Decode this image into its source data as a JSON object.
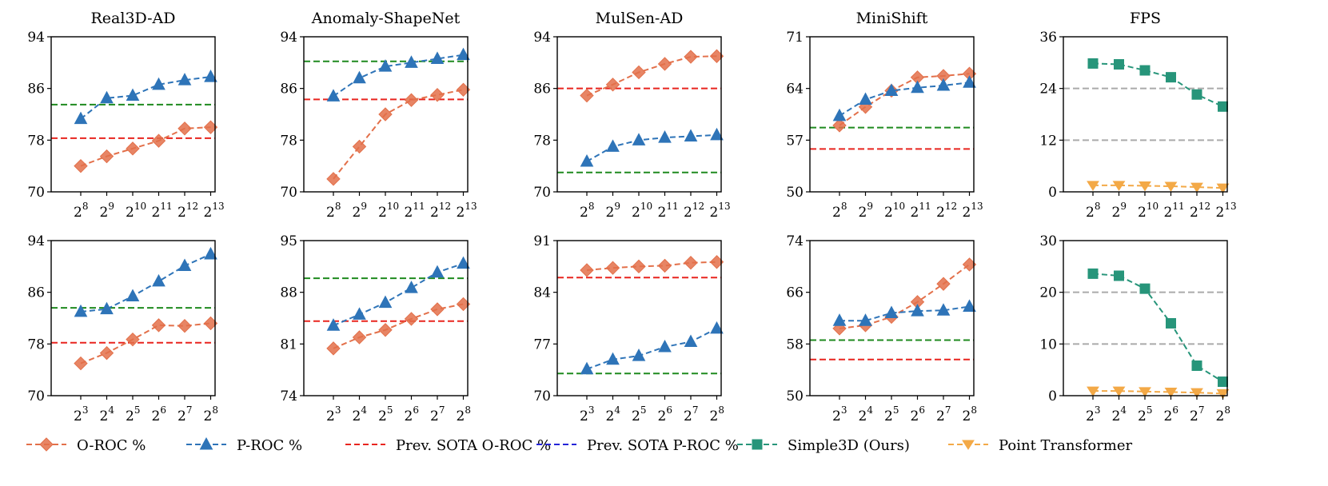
{
  "colors": {
    "oroc": "#e3704a",
    "proc": "#2e74b8",
    "sota_oroc": "#e8251f",
    "sota_proc": "#2424d8",
    "simple3d": "#27957a",
    "pt": "#f3a947",
    "green_ref": "#1f8a1f",
    "gray_ref": "#aaaaaa"
  },
  "legend": [
    {
      "key": "oroc",
      "label": "O-ROC %",
      "marker": "diamond"
    },
    {
      "key": "proc",
      "label": "P-ROC %",
      "marker": "triangle"
    },
    {
      "key": "sota_oroc",
      "label": "Prev. SOTA O-ROC %",
      "marker": "none"
    },
    {
      "key": "sota_proc",
      "label": "Prev. SOTA P-ROC %",
      "marker": "none"
    },
    {
      "key": "simple3d",
      "label": "Simple3D (Ours)",
      "marker": "square"
    },
    {
      "key": "pt",
      "label": "Point Transformer",
      "marker": "triangle-down"
    }
  ],
  "chart_data": [
    {
      "id": "r1c1",
      "type": "line",
      "title": "Real3D-AD",
      "ylim": [
        70,
        94
      ],
      "yticks": [
        "70",
        "78",
        "86",
        "94"
      ],
      "x_base": "2",
      "x_exponents": [
        "8",
        "9",
        "10",
        "11",
        "12",
        "13"
      ],
      "series": [
        {
          "key": "oroc",
          "values": [
            74.0,
            75.5,
            76.7,
            77.9,
            79.8,
            80.0
          ]
        },
        {
          "key": "proc",
          "values": [
            81.3,
            84.5,
            84.9,
            86.6,
            87.3,
            87.8
          ]
        }
      ],
      "hlines": [
        {
          "key": "sota_oroc",
          "value": 78.3
        },
        {
          "key": "green_ref",
          "value": 83.5
        }
      ]
    },
    {
      "id": "r1c2",
      "type": "line",
      "title": "Anomaly-ShapeNet",
      "ylim": [
        70,
        94
      ],
      "yticks": [
        "70",
        "78",
        "86",
        "94"
      ],
      "x_base": "2",
      "x_exponents": [
        "8",
        "9",
        "10",
        "11",
        "12",
        "13"
      ],
      "series": [
        {
          "key": "oroc",
          "values": [
            72.0,
            77.0,
            82.0,
            84.2,
            85.0,
            85.8
          ]
        },
        {
          "key": "proc",
          "values": [
            84.8,
            87.6,
            89.4,
            90.0,
            90.6,
            91.2
          ]
        }
      ],
      "hlines": [
        {
          "key": "sota_oroc",
          "value": 84.3
        },
        {
          "key": "green_ref",
          "value": 90.2
        }
      ]
    },
    {
      "id": "r1c3",
      "type": "line",
      "title": "MulSen-AD",
      "ylim": [
        70,
        94
      ],
      "yticks": [
        "70",
        "78",
        "86",
        "94"
      ],
      "x_base": "2",
      "x_exponents": [
        "8",
        "9",
        "10",
        "11",
        "12",
        "13"
      ],
      "series": [
        {
          "key": "oroc",
          "values": [
            84.9,
            86.6,
            88.5,
            89.8,
            90.9,
            91.0
          ]
        },
        {
          "key": "proc",
          "values": [
            74.7,
            77.0,
            78.0,
            78.4,
            78.6,
            78.8
          ]
        }
      ],
      "hlines": [
        {
          "key": "sota_oroc",
          "value": 86.0
        },
        {
          "key": "green_ref",
          "value": 73.0
        }
      ]
    },
    {
      "id": "r1c4",
      "type": "line",
      "title": "MiniShift",
      "ylim": [
        50,
        71
      ],
      "yticks": [
        "50",
        "57",
        "64",
        "71"
      ],
      "x_base": "2",
      "x_exponents": [
        "8",
        "9",
        "10",
        "11",
        "12",
        "13"
      ],
      "series": [
        {
          "key": "oroc",
          "values": [
            59.0,
            61.5,
            63.7,
            65.5,
            65.7,
            66.0
          ]
        },
        {
          "key": "proc",
          "values": [
            60.3,
            62.5,
            63.7,
            64.1,
            64.4,
            64.8
          ]
        }
      ],
      "hlines": [
        {
          "key": "sota_oroc",
          "value": 55.8
        },
        {
          "key": "green_ref",
          "value": 58.7
        }
      ]
    },
    {
      "id": "r1c5",
      "type": "line",
      "title": "FPS",
      "ylim": [
        0,
        36
      ],
      "yticks": [
        "0",
        "12",
        "24",
        "36"
      ],
      "x_base": "2",
      "x_exponents": [
        "8",
        "9",
        "10",
        "11",
        "12",
        "13"
      ],
      "series": [
        {
          "key": "simple3d",
          "values": [
            29.8,
            29.6,
            28.2,
            26.6,
            22.6,
            19.8
          ]
        },
        {
          "key": "pt",
          "values": [
            1.5,
            1.5,
            1.4,
            1.3,
            1.1,
            0.9
          ]
        }
      ],
      "hlines": [
        {
          "key": "gray_ref",
          "value": 24.0
        },
        {
          "key": "gray_ref",
          "value": 12.0
        }
      ]
    },
    {
      "id": "r2c1",
      "type": "line",
      "title": "",
      "ylim": [
        70,
        94
      ],
      "yticks": [
        "70",
        "78",
        "86",
        "94"
      ],
      "x_base": "2",
      "x_exponents": [
        "3",
        "4",
        "5",
        "6",
        "7",
        "8"
      ],
      "series": [
        {
          "key": "oroc",
          "values": [
            75.0,
            76.6,
            78.7,
            80.9,
            80.8,
            81.2
          ]
        },
        {
          "key": "proc",
          "values": [
            83.0,
            83.4,
            85.4,
            87.7,
            90.1,
            91.9
          ]
        }
      ],
      "hlines": [
        {
          "key": "sota_oroc",
          "value": 78.2
        },
        {
          "key": "green_ref",
          "value": 83.6
        }
      ]
    },
    {
      "id": "r2c2",
      "type": "line",
      "title": "",
      "ylim": [
        74,
        95
      ],
      "yticks": [
        "74",
        "81",
        "88",
        "95"
      ],
      "x_base": "2",
      "x_exponents": [
        "3",
        "4",
        "5",
        "6",
        "7",
        "8"
      ],
      "series": [
        {
          "key": "oroc",
          "values": [
            80.4,
            81.9,
            82.9,
            84.4,
            85.7,
            86.4
          ]
        },
        {
          "key": "proc",
          "values": [
            83.5,
            85.0,
            86.6,
            88.6,
            90.7,
            91.9
          ]
        }
      ],
      "hlines": [
        {
          "key": "sota_oroc",
          "value": 84.1
        },
        {
          "key": "green_ref",
          "value": 89.9
        }
      ]
    },
    {
      "id": "r2c3",
      "type": "line",
      "title": "",
      "ylim": [
        70,
        91
      ],
      "yticks": [
        "70",
        "77",
        "84",
        "91"
      ],
      "x_base": "2",
      "x_exponents": [
        "3",
        "4",
        "5",
        "6",
        "7",
        "8"
      ],
      "series": [
        {
          "key": "oroc",
          "values": [
            87.0,
            87.3,
            87.5,
            87.6,
            88.0,
            88.1
          ]
        },
        {
          "key": "proc",
          "values": [
            73.6,
            74.9,
            75.4,
            76.6,
            77.3,
            79.1
          ]
        }
      ],
      "hlines": [
        {
          "key": "sota_oroc",
          "value": 86.0
        },
        {
          "key": "green_ref",
          "value": 73.0
        }
      ]
    },
    {
      "id": "r2c4",
      "type": "line",
      "title": "",
      "ylim": [
        50,
        74
      ],
      "yticks": [
        "50",
        "58",
        "66",
        "74"
      ],
      "x_base": "2",
      "x_exponents": [
        "3",
        "4",
        "5",
        "6",
        "7",
        "8"
      ],
      "series": [
        {
          "key": "oroc",
          "values": [
            60.4,
            60.9,
            62.2,
            64.5,
            67.3,
            70.3
          ]
        },
        {
          "key": "proc",
          "values": [
            61.6,
            61.6,
            62.8,
            63.1,
            63.2,
            63.8
          ]
        }
      ],
      "hlines": [
        {
          "key": "sota_oroc",
          "value": 55.6
        },
        {
          "key": "green_ref",
          "value": 58.6
        }
      ]
    },
    {
      "id": "r2c5",
      "type": "line",
      "title": "",
      "ylim": [
        0,
        30
      ],
      "yticks": [
        "0",
        "10",
        "20",
        "30"
      ],
      "x_base": "2",
      "x_exponents": [
        "3",
        "4",
        "5",
        "6",
        "7",
        "8"
      ],
      "series": [
        {
          "key": "simple3d",
          "values": [
            23.6,
            23.2,
            20.7,
            14.0,
            5.8,
            2.7
          ]
        },
        {
          "key": "pt",
          "values": [
            0.9,
            0.9,
            0.8,
            0.7,
            0.6,
            0.4
          ]
        }
      ],
      "hlines": [
        {
          "key": "gray_ref",
          "value": 20.0
        },
        {
          "key": "gray_ref",
          "value": 10.0
        }
      ]
    }
  ]
}
